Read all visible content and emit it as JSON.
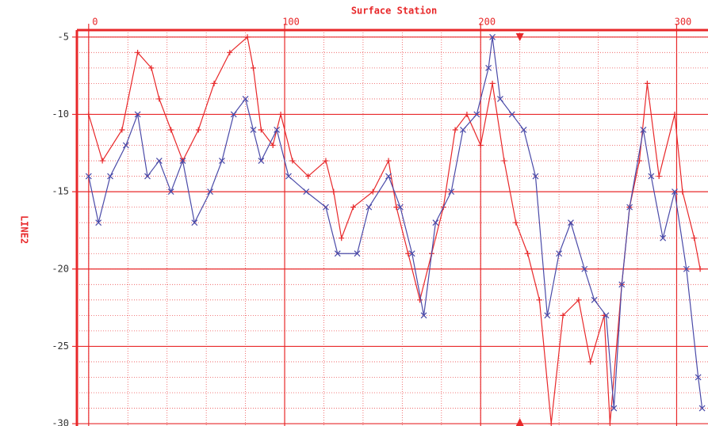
{
  "chart_data": {
    "type": "line",
    "title": "Surface Station",
    "ylabel": "LINE2",
    "xlim": [
      -6,
      316
    ],
    "ylim": [
      -30.15,
      -4.55
    ],
    "xticks": [
      0,
      100,
      200,
      300
    ],
    "yticks": [
      -5,
      -10,
      -15,
      -20,
      -25,
      -30
    ],
    "minor_grid": [
      20,
      1
    ],
    "grid": true,
    "cursor_x": 220,
    "axis_color": "#e8282a",
    "series": [
      {
        "color": "#e8282a",
        "marker": "+",
        "x": [
          0,
          7,
          17,
          25,
          32,
          36,
          42,
          48,
          56,
          64,
          72,
          81,
          84,
          88,
          94,
          98,
          104,
          112,
          121,
          125,
          129,
          135,
          145,
          153,
          157,
          163,
          169,
          175,
          181,
          187,
          193,
          200,
          206,
          212,
          218,
          224,
          230,
          236,
          242,
          250,
          256,
          263,
          266,
          272,
          276,
          281,
          285,
          291,
          299,
          303,
          309,
          312
        ],
        "values": [
          -10,
          -13,
          -11,
          -6,
          -7,
          -9,
          -11,
          -13,
          -11,
          -8,
          -6,
          -5,
          -7,
          -11,
          -12,
          -10,
          -13,
          -14,
          -13,
          -15,
          -18,
          -16,
          -15,
          -13,
          -16,
          -19,
          -22,
          -19,
          -16,
          -11,
          -10,
          -12,
          -8,
          -13,
          -17,
          -19,
          -22,
          -30,
          -23,
          -22,
          -26,
          -23,
          -30,
          -21,
          -16,
          -13,
          -8,
          -14,
          -10,
          -15,
          -18,
          -20
        ]
      },
      {
        "color": "#4a4aa8",
        "marker": "x",
        "x": [
          0,
          5,
          11,
          19,
          25,
          30,
          36,
          42,
          48,
          54,
          62,
          68,
          74,
          80,
          84,
          88,
          96,
          102,
          111,
          121,
          127,
          137,
          143,
          153,
          159,
          165,
          171,
          177,
          185,
          191,
          198,
          204,
          206,
          210,
          216,
          222,
          228,
          234,
          240,
          246,
          253,
          258,
          264,
          268,
          272,
          276,
          283,
          287,
          293,
          299,
          305,
          311,
          313
        ],
        "values": [
          -14,
          -17,
          -14,
          -12,
          -10,
          -14,
          -13,
          -15,
          -13,
          -17,
          -15,
          -13,
          -10,
          -9,
          -11,
          -13,
          -11,
          -14,
          -15,
          -16,
          -19,
          -19,
          -16,
          -14,
          -16,
          -19,
          -23,
          -17,
          -15,
          -11,
          -10,
          -7,
          -5,
          -9,
          -10,
          -11,
          -14,
          -23,
          -19,
          -17,
          -20,
          -22,
          -23,
          -29,
          -21,
          -16,
          -11,
          -14,
          -18,
          -15,
          -20,
          -27,
          -29
        ]
      }
    ]
  }
}
